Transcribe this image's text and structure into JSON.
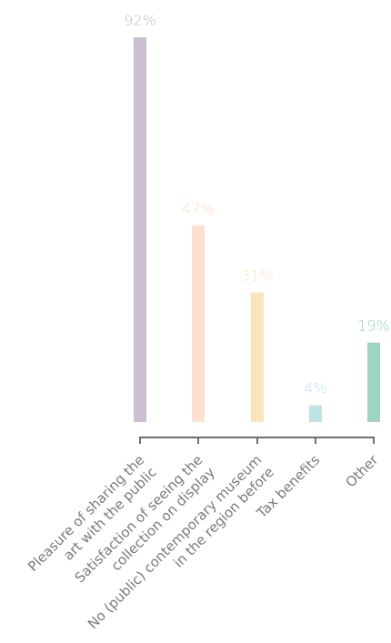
{
  "chart_data": {
    "type": "bar",
    "title": "",
    "xlabel": "",
    "ylabel": "",
    "ylim": [
      0,
      92
    ],
    "grid": false,
    "categories": [
      [
        "Pleasure of sharing the",
        "art with the public"
      ],
      [
        "Satisfaction of seeing the",
        "collection on display"
      ],
      [
        "No (public) contemporary museum",
        "in the region before"
      ],
      [
        "Tax benefits"
      ],
      [
        "Other"
      ]
    ],
    "values": [
      92,
      47,
      31,
      4,
      19
    ],
    "value_labels": [
      "92%",
      "47%",
      "31%",
      "4%",
      "19%"
    ],
    "colors": [
      "#cbbfd2",
      "#fce0d2",
      "#f8e5bc",
      "#bfe3e3",
      "#9ed5c0"
    ],
    "label_colors": [
      "#c7bccf",
      "#f8dccd",
      "#efe4c1",
      "#bfe2e2",
      "#8fd2b8"
    ]
  }
}
